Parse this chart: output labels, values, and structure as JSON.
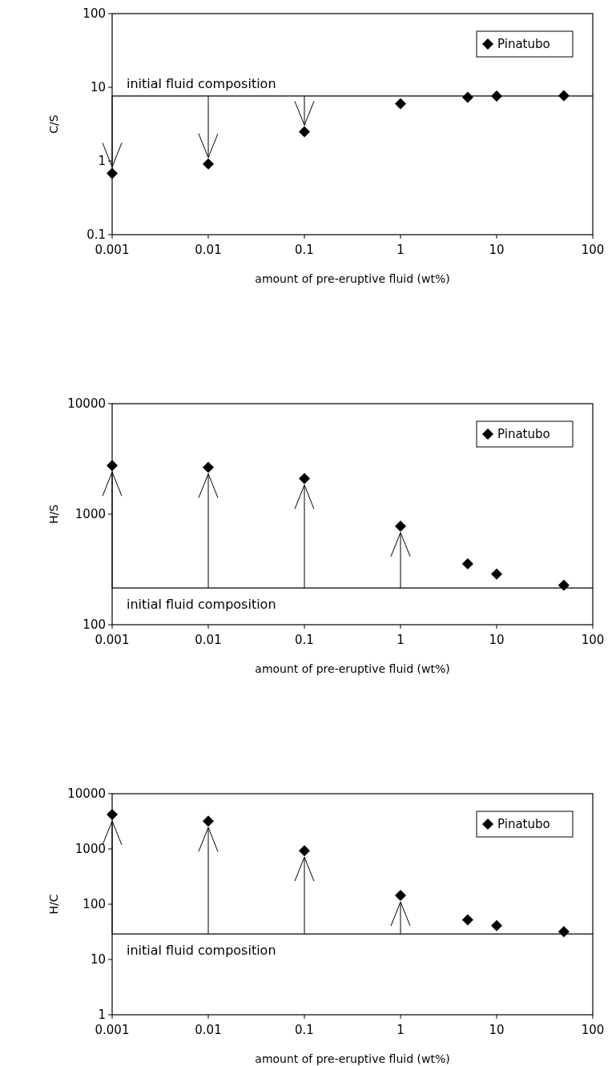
{
  "chart_data": [
    {
      "type": "scatter",
      "x": [
        0.001,
        0.01,
        0.1,
        1,
        5,
        10,
        50
      ],
      "ylabel": "C/S",
      "xlabel": "amount of pre-eruptive fluid (wt%)",
      "log": "xy",
      "xlim": [
        0.001,
        100
      ],
      "ylim": [
        0.1,
        100
      ],
      "xticks": [
        0.001,
        0.01,
        0.1,
        1,
        10,
        100
      ],
      "yticks": [
        0.1,
        1,
        10,
        100
      ],
      "marker": "diamond",
      "legend": "top right",
      "grid": false,
      "series": [
        {
          "name": "Pinatubo",
          "color": "#000000",
          "values": [
            0.68,
            0.91,
            2.5,
            6.0,
            7.3,
            7.6,
            7.7
          ]
        }
      ],
      "ref_lines": [
        {
          "axis": "y",
          "value": 7.6,
          "label": "initial fluid composition",
          "color": "#000000"
        }
      ]
    },
    {
      "type": "scatter",
      "x": [
        0.001,
        0.01,
        0.1,
        1,
        5,
        10,
        50
      ],
      "ylabel": "H/S",
      "xlabel": "amount of pre-eruptive fluid (wt%)",
      "log": "xy",
      "xlim": [
        0.001,
        100
      ],
      "ylim": [
        100,
        10000
      ],
      "xticks": [
        0.001,
        0.01,
        0.1,
        1,
        10,
        100
      ],
      "yticks": [
        100,
        1000,
        10000
      ],
      "marker": "diamond",
      "legend": "top right",
      "grid": false,
      "series": [
        {
          "name": "Pinatubo",
          "color": "#000000",
          "values": [
            2750,
            2650,
            2100,
            780,
            355,
            287,
            227
          ]
        }
      ],
      "ref_lines": [
        {
          "axis": "y",
          "value": 215,
          "label": "initial fluid composition",
          "color": "#000000"
        }
      ]
    },
    {
      "type": "scatter",
      "x": [
        0.001,
        0.01,
        0.1,
        1,
        5,
        10,
        50
      ],
      "ylabel": "H/C",
      "xlabel": "amount of pre-eruptive fluid (wt%)",
      "log": "xy",
      "xlim": [
        0.001,
        100
      ],
      "ylim": [
        1,
        10000
      ],
      "xticks": [
        0.001,
        0.01,
        0.1,
        1,
        10,
        100
      ],
      "yticks": [
        1,
        10,
        100,
        1000,
        10000
      ],
      "marker": "diamond",
      "legend": "top right",
      "grid": false,
      "series": [
        {
          "name": "Pinatubo",
          "color": "#000000",
          "values": [
            4200,
            3200,
            930,
            144,
            52,
            41,
            32
          ]
        }
      ],
      "ref_lines": [
        {
          "axis": "y",
          "value": 29,
          "label": "initial fluid composition",
          "color": "#000000"
        }
      ]
    }
  ]
}
